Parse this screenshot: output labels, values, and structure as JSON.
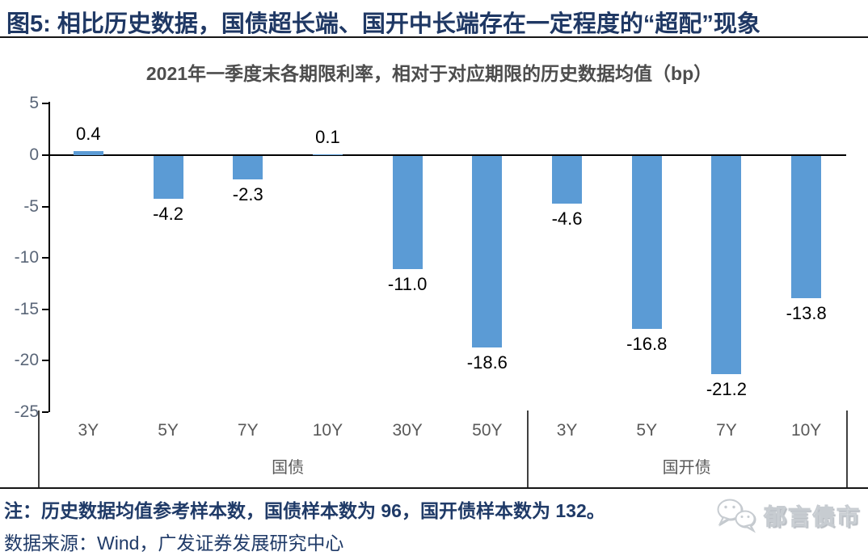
{
  "figure": {
    "title": "图5:  相比历史数据，国债超长端、国开中长端存在一定程度的“超配”现象",
    "note": "注：历史数据均值参考样本数，国债样本数为 96，国开债样本数为 132。",
    "source": "数据来源：Wind，广发证券发展研究中心",
    "logo_text": "郁言债市"
  },
  "chart_data": {
    "type": "bar",
    "title": "2021年一季度末各期限利率，相对于对应期限的历史数据均值（bp）",
    "categories": [
      "3Y",
      "5Y",
      "7Y",
      "10Y",
      "30Y",
      "50Y",
      "3Y",
      "5Y",
      "7Y",
      "10Y"
    ],
    "groups": [
      {
        "label": "国债",
        "span": 6
      },
      {
        "label": "国开债",
        "span": 4
      }
    ],
    "values": [
      0.4,
      -4.2,
      -2.3,
      0.1,
      -11.0,
      -18.6,
      -4.6,
      -16.8,
      -21.2,
      -13.8
    ],
    "ylim": [
      -25,
      5
    ],
    "yticks": [
      5,
      0,
      -5,
      -10,
      -15,
      -20,
      -25
    ],
    "bar_color": "#5B9BD5",
    "grid": false,
    "legend": "none",
    "value_labels": true
  },
  "colors": {
    "title_navy": "#1f3864",
    "subtitle_gray": "#4d4d4d",
    "axis_label": "#5a6678",
    "category_label": "#595959",
    "bar_blue": "#5B9BD5",
    "note_navy": "#1f3a67",
    "axis_line": "#000000",
    "separator": "#404040",
    "logo_gray": "#c7ccd1"
  }
}
